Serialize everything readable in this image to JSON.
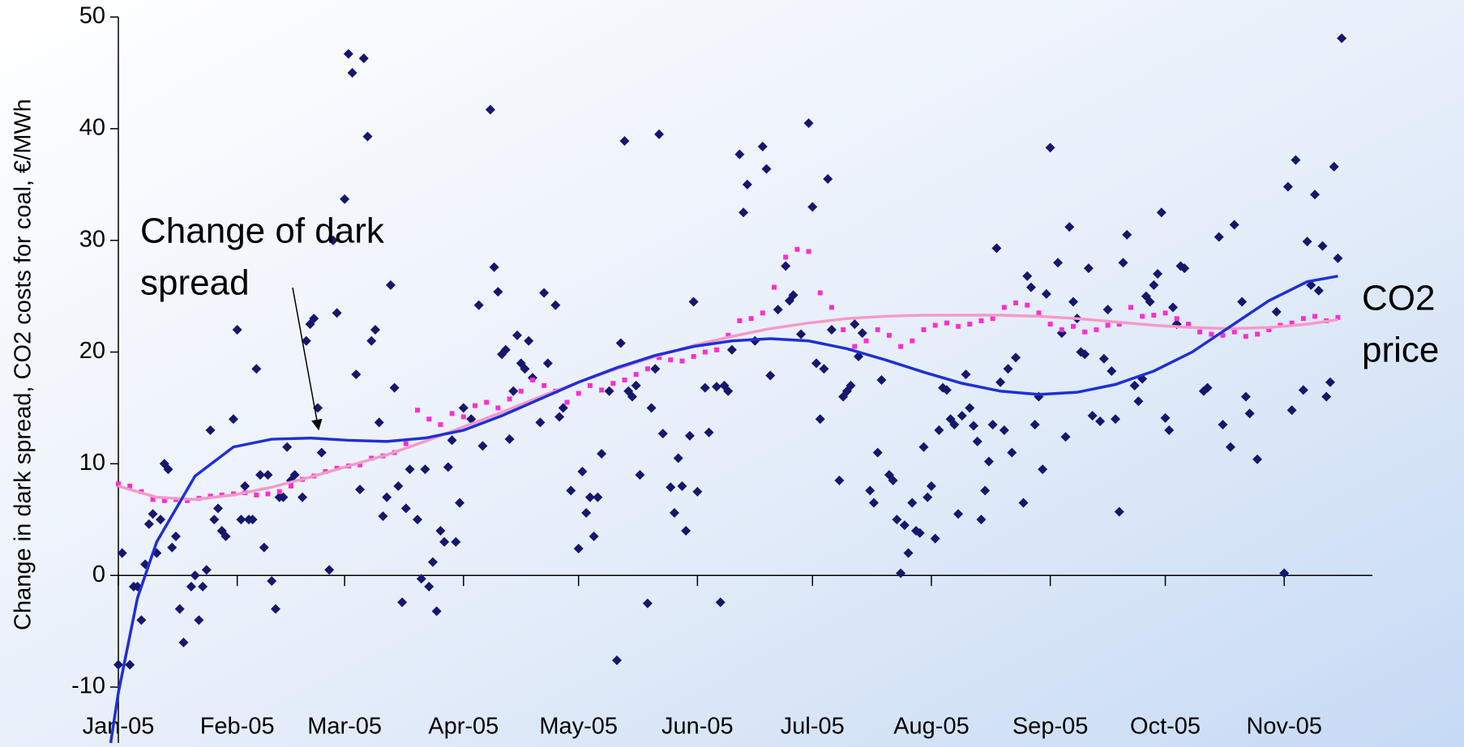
{
  "chart_data": {
    "type": "scatter",
    "ylabel": "Change in dark spread, CO2 costs for coal, €/MWh",
    "xlim": [
      0,
      327
    ],
    "ylim": [
      -15,
      50
    ],
    "xticks": [
      {
        "value": 0,
        "label": "Jan-05"
      },
      {
        "value": 31,
        "label": "Feb-05"
      },
      {
        "value": 59,
        "label": "Mar-05"
      },
      {
        "value": 90,
        "label": "Apr-05"
      },
      {
        "value": 120,
        "label": "May-05"
      },
      {
        "value": 151,
        "label": "Jun-05"
      },
      {
        "value": 181,
        "label": "Jul-05"
      },
      {
        "value": 212,
        "label": "Aug-05"
      },
      {
        "value": 243,
        "label": "Sep-05"
      },
      {
        "value": 273,
        "label": "Oct-05"
      },
      {
        "value": 304,
        "label": "Nov-05"
      }
    ],
    "yticks": [
      -10,
      0,
      10,
      20,
      30,
      40,
      50
    ],
    "grid": false,
    "annotations": [
      {
        "lines": [
          "Change of dark",
          "spread"
        ],
        "arrow": true
      },
      {
        "lines": [
          "CO2",
          "price"
        ],
        "arrow": false
      }
    ],
    "series": [
      {
        "type": "scatter",
        "marker": "diamond",
        "color": "#16166e",
        "x": [
          0,
          1,
          3,
          4,
          5,
          6,
          7,
          8,
          9,
          10,
          11,
          12,
          13,
          14,
          15,
          16,
          17,
          19,
          20,
          21,
          22,
          23,
          24,
          25,
          26,
          27,
          28,
          30,
          31,
          32,
          33,
          34,
          35,
          36,
          37,
          38,
          39,
          40,
          41,
          42,
          43,
          44,
          45,
          46,
          48,
          49,
          50,
          51,
          52,
          53,
          55,
          56,
          57,
          59,
          60,
          61,
          62,
          63,
          64,
          65,
          66,
          67,
          68,
          69,
          70,
          71,
          72,
          73,
          74,
          75,
          76,
          78,
          79,
          80,
          81,
          82,
          83,
          84,
          85,
          86,
          87,
          88,
          89,
          90,
          92,
          94,
          95,
          97,
          98,
          99,
          100,
          101,
          102,
          103,
          104,
          105,
          106,
          107,
          108,
          110,
          111,
          112,
          114,
          115,
          116,
          118,
          120,
          121,
          122,
          123,
          124,
          125,
          126,
          128,
          130,
          131,
          132,
          133,
          134,
          135,
          136,
          138,
          139,
          140,
          141,
          142,
          144,
          145,
          146,
          147,
          148,
          149,
          150,
          151,
          153,
          154,
          156,
          157,
          158,
          159,
          160,
          162,
          163,
          164,
          166,
          168,
          169,
          170,
          172,
          174,
          175,
          176,
          178,
          180,
          181,
          182,
          183,
          184,
          185,
          186,
          188,
          189,
          190,
          191,
          192,
          193,
          194,
          196,
          197,
          198,
          199,
          201,
          202,
          203,
          204,
          205,
          206,
          207,
          208,
          209,
          210,
          211,
          212,
          213,
          214,
          215,
          216,
          217,
          218,
          219,
          220,
          221,
          222,
          223,
          224,
          225,
          226,
          227,
          228,
          229,
          230,
          231,
          232,
          233,
          234,
          236,
          237,
          238,
          239,
          240,
          241,
          242,
          243,
          245,
          246,
          247,
          248,
          249,
          250,
          251,
          252,
          253,
          254,
          256,
          257,
          258,
          259,
          260,
          261,
          262,
          263,
          265,
          266,
          267,
          268,
          269,
          270,
          271,
          272,
          273,
          274,
          275,
          276,
          277,
          278,
          283,
          284,
          287,
          288,
          290,
          291,
          293,
          294,
          295,
          297,
          302,
          304,
          305,
          306,
          307,
          309,
          310,
          311,
          312,
          313,
          314,
          315,
          316,
          317,
          318,
          319
        ],
        "values": [
          -8,
          2,
          -8,
          -1,
          -1,
          -4,
          1,
          4.6,
          5.5,
          2,
          5,
          10,
          9.5,
          2.5,
          3.5,
          -3,
          -6,
          -1,
          0,
          -4,
          -1,
          0.5,
          13,
          5,
          6,
          4,
          3.5,
          14,
          22,
          5,
          8,
          5,
          5,
          18.5,
          9,
          2.5,
          9,
          -0.5,
          -3,
          7,
          7,
          11.5,
          8.5,
          9,
          7,
          21,
          22.5,
          23,
          15,
          11,
          0.5,
          30,
          23.5,
          33.7,
          46.7,
          45,
          18,
          7.7,
          46.3,
          39.3,
          21,
          22,
          13.7,
          5.3,
          7,
          26,
          16.8,
          8,
          -2.4,
          6,
          9.5,
          5,
          -0.3,
          9.5,
          -1,
          1.2,
          -3.2,
          4,
          3,
          9.7,
          12.1,
          3,
          6.5,
          15,
          14,
          24.2,
          11.6,
          41.7,
          27.6,
          25.4,
          19.8,
          20.2,
          12.2,
          16.5,
          21.5,
          19,
          18.5,
          21,
          17.7,
          13.7,
          25.3,
          19,
          24.2,
          14.2,
          15,
          7.6,
          2.4,
          9.3,
          5.6,
          7,
          3.5,
          7,
          10.9,
          16.5,
          -7.6,
          20.8,
          38.9,
          16.5,
          16,
          17,
          9,
          -2.5,
          15,
          18.5,
          39.5,
          12.7,
          7.9,
          5.6,
          10.5,
          8,
          4,
          12.5,
          24.5,
          7.5,
          16.8,
          12.8,
          16.9,
          -2.4,
          17,
          16.5,
          20.2,
          37.7,
          32.5,
          35,
          21,
          38.4,
          36.4,
          17.9,
          23.8,
          27.7,
          24.6,
          25.1,
          21.6,
          40.5,
          33,
          19,
          14,
          18.5,
          35.5,
          22,
          8.5,
          16,
          16.5,
          17,
          22.5,
          19.6,
          21.7,
          7.6,
          6.5,
          11,
          17.5,
          9,
          8.5,
          5,
          0.2,
          4.5,
          2,
          6.5,
          4,
          3.8,
          11.5,
          7,
          8,
          3.3,
          13,
          16.8,
          16.6,
          14,
          13.5,
          5.5,
          14.3,
          18,
          15,
          13.4,
          12,
          5,
          7.6,
          10.2,
          13.5,
          29.3,
          17.3,
          13,
          18.5,
          11,
          19.5,
          6.5,
          26.8,
          25.8,
          13.5,
          16,
          9.5,
          25.2,
          38.3,
          28,
          21.7,
          12.4,
          31.2,
          24.5,
          23,
          20,
          19.8,
          27.5,
          14.3,
          13.8,
          19.4,
          23.8,
          18.3,
          14,
          5.7,
          28,
          30.5,
          17,
          15.6,
          17.6,
          25,
          24.5,
          26,
          27,
          32.5,
          14.1,
          13,
          24,
          22.5,
          27.7,
          27.5,
          16.5,
          16.8,
          30.3,
          13.5,
          11.5,
          31.4,
          24.5,
          16,
          14.5,
          10.4,
          23.6,
          0.2,
          34.8,
          14.8,
          37.2,
          16.6,
          29.9,
          26,
          34.1,
          25.5,
          29.5,
          16,
          17.3,
          36.6,
          28.4,
          48.1
        ]
      },
      {
        "type": "scatter",
        "marker": "square",
        "color": "#ff2fd0",
        "x": [
          0,
          3,
          6,
          9,
          12,
          15,
          18,
          21,
          24,
          27,
          30,
          33,
          36,
          39,
          42,
          45,
          48,
          51,
          54,
          57,
          60,
          63,
          66,
          69,
          72,
          75,
          78,
          81,
          84,
          87,
          90,
          93,
          96,
          99,
          102,
          105,
          108,
          111,
          114,
          117,
          120,
          123,
          126,
          129,
          132,
          135,
          138,
          141,
          144,
          147,
          150,
          153,
          156,
          159,
          162,
          165,
          168,
          171,
          174,
          177,
          180,
          183,
          186,
          189,
          192,
          195,
          198,
          201,
          204,
          207,
          210,
          213,
          216,
          219,
          222,
          225,
          228,
          231,
          234,
          237,
          240,
          243,
          246,
          249,
          252,
          255,
          258,
          261,
          264,
          267,
          270,
          273,
          276,
          279,
          282,
          285,
          288,
          291,
          294,
          297,
          300,
          303,
          306,
          309,
          312,
          315,
          318
        ],
        "values": [
          8.2,
          8.0,
          7.5,
          6.8,
          6.7,
          6.8,
          6.7,
          6.9,
          7.1,
          7.2,
          7.3,
          7.4,
          7.2,
          7.3,
          7.5,
          8.0,
          8.6,
          8.9,
          9.3,
          9.6,
          9.8,
          9.9,
          10.5,
          10.7,
          11.0,
          11.8,
          14.8,
          14.0,
          13.5,
          14.5,
          14.2,
          15.2,
          15.5,
          15.0,
          15.8,
          16.5,
          17.5,
          17.0,
          16.5,
          15.5,
          16.3,
          17.0,
          16.6,
          17.2,
          17.5,
          18.0,
          18.5,
          19.5,
          19.3,
          19.2,
          19.6,
          20.0,
          20.2,
          21.5,
          22.8,
          23.0,
          23.5,
          25.8,
          28.5,
          29.2,
          29.0,
          25.3,
          24.0,
          22.0,
          20.5,
          21.0,
          22.0,
          21.5,
          20.5,
          21.0,
          22.0,
          22.4,
          22.6,
          22.3,
          22.5,
          22.8,
          23.0,
          24.0,
          24.4,
          24.2,
          23.5,
          22.5,
          22.0,
          22.3,
          21.8,
          22.0,
          22.4,
          22.5,
          24.0,
          23.2,
          23.3,
          23.5,
          23.0,
          22.5,
          21.8,
          21.6,
          21.5,
          21.8,
          21.4,
          21.6,
          22.0,
          22.4,
          22.6,
          23.0,
          23.2,
          22.8,
          23.1
        ]
      },
      {
        "type": "line",
        "color": "#f59ac8",
        "x": [
          0,
          10,
          20,
          30,
          40,
          50,
          60,
          70,
          80,
          90,
          100,
          110,
          120,
          130,
          140,
          150,
          160,
          170,
          180,
          190,
          200,
          210,
          220,
          230,
          240,
          250,
          260,
          270,
          280,
          290,
          300,
          310,
          318
        ],
        "values": [
          8.0,
          7.0,
          6.8,
          7.2,
          7.9,
          8.8,
          9.8,
          10.8,
          12.0,
          13.3,
          14.6,
          16.0,
          17.3,
          18.5,
          19.6,
          20.6,
          21.4,
          22.1,
          22.6,
          23.0,
          23.2,
          23.3,
          23.3,
          23.3,
          23.2,
          23.0,
          22.7,
          22.4,
          22.2,
          22.1,
          22.2,
          22.5,
          22.9
        ]
      },
      {
        "type": "line",
        "color": "#1f2fd6",
        "x": [
          -2,
          0,
          5,
          10,
          20,
          30,
          40,
          50,
          60,
          70,
          80,
          90,
          100,
          110,
          120,
          130,
          140,
          150,
          160,
          170,
          180,
          190,
          200,
          210,
          220,
          230,
          240,
          250,
          260,
          270,
          280,
          290,
          300,
          310,
          318
        ],
        "values": [
          -15,
          -10.5,
          -2,
          3,
          8.9,
          11.5,
          12.2,
          12.3,
          12.1,
          12.0,
          12.3,
          13.0,
          14.3,
          15.8,
          17.3,
          18.6,
          19.7,
          20.5,
          21.0,
          21.2,
          21.0,
          20.3,
          19.3,
          18.2,
          17.2,
          16.5,
          16.2,
          16.4,
          17.1,
          18.3,
          20.0,
          22.3,
          24.6,
          26.3,
          26.8
        ]
      }
    ]
  }
}
